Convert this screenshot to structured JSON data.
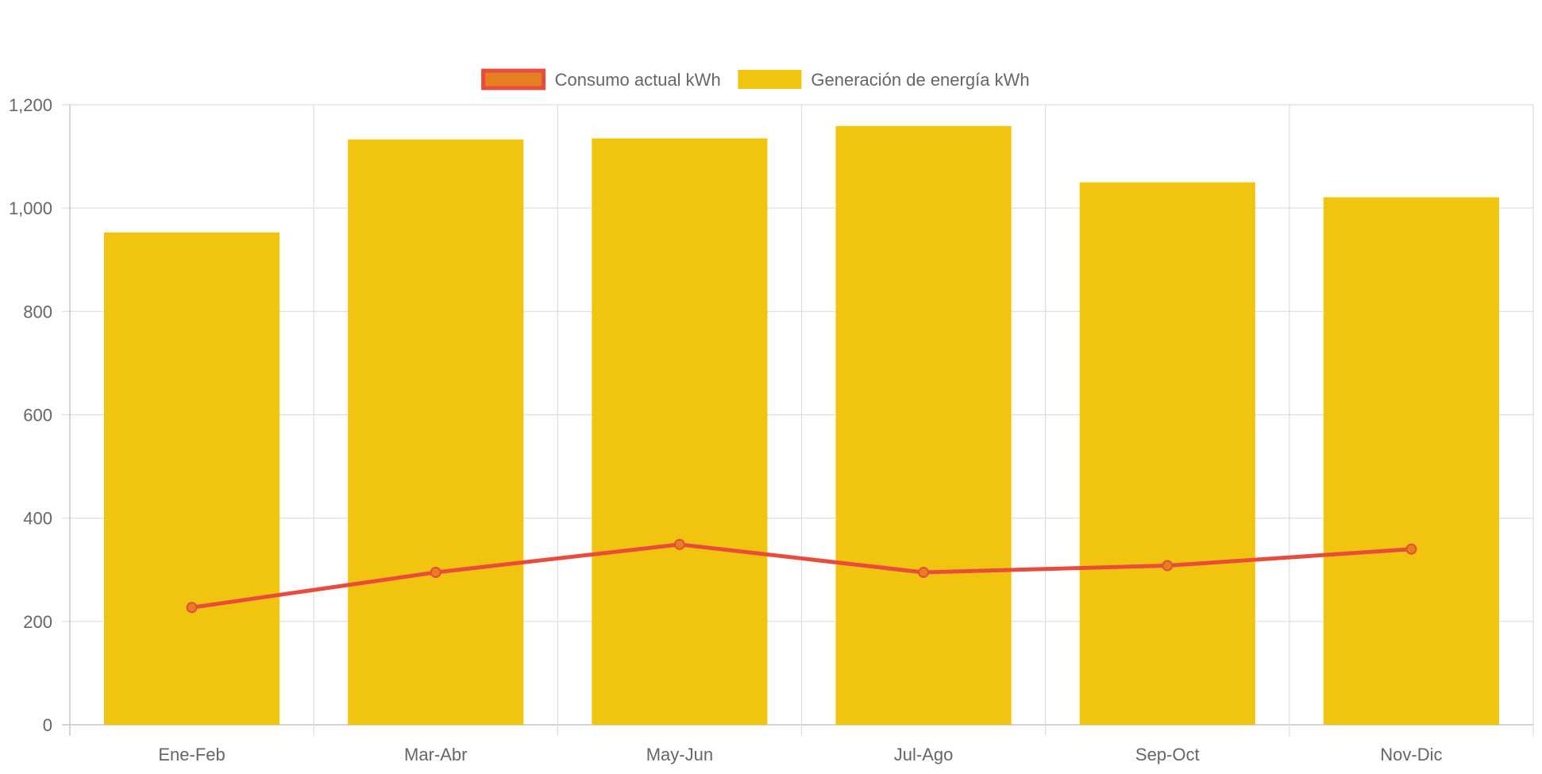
{
  "chart_data": {
    "type": "bar",
    "categories": [
      "Ene-Feb",
      "Mar-Abr",
      "May-Jun",
      "Jul-Ago",
      "Sep-Oct",
      "Nov-Dic"
    ],
    "series": [
      {
        "name": "Consumo actual kWh",
        "type": "line",
        "values": [
          227,
          295,
          349,
          295,
          308,
          340
        ],
        "color": "#e74c3c",
        "point_fill": "#e67e22"
      },
      {
        "name": "Generación de energía kWh",
        "type": "bar",
        "values": [
          953,
          1133,
          1135,
          1159,
          1050,
          1021
        ],
        "color": "#f1c40f"
      }
    ],
    "ylim": [
      0,
      1200
    ],
    "yticks": [
      0,
      200,
      400,
      600,
      800,
      1000,
      1200
    ],
    "ytick_labels": [
      "0",
      "200",
      "400",
      "600",
      "800",
      "1,000",
      "1,200"
    ],
    "grid": true,
    "legend_position": "top-center",
    "colors": {
      "grid": "#dddddd",
      "axis": "#bbbbbb",
      "tick_text": "#666666"
    }
  }
}
